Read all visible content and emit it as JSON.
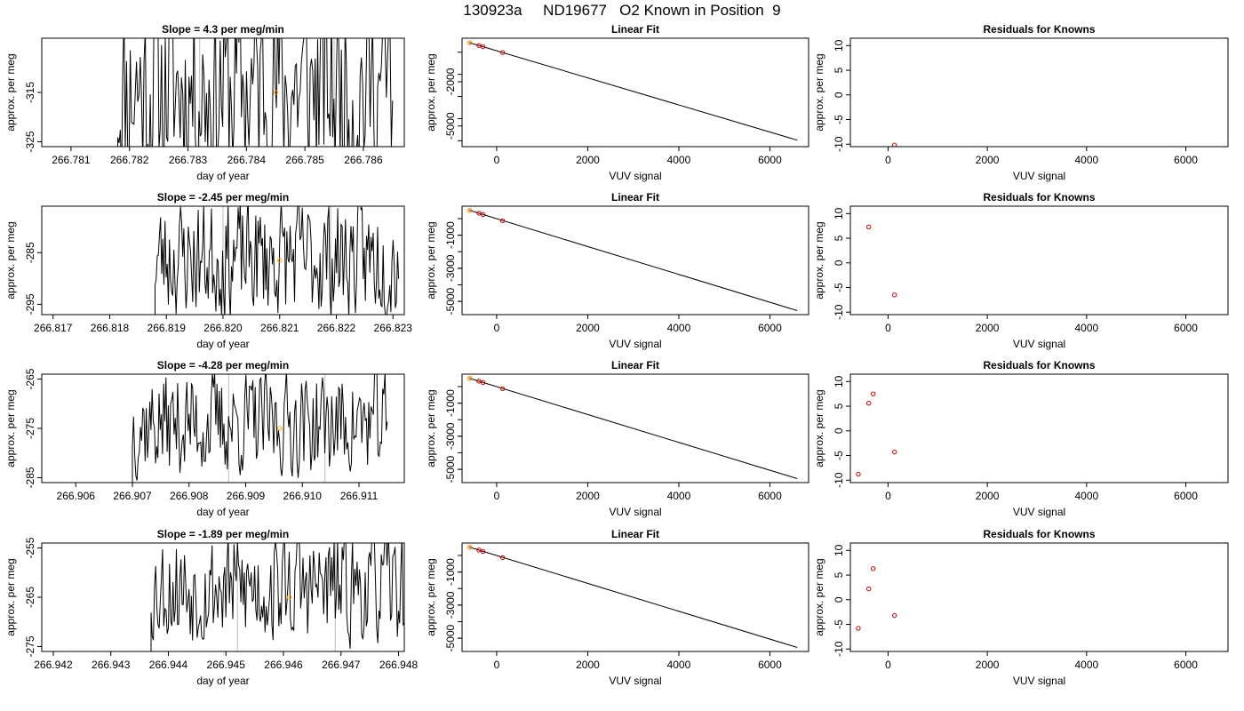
{
  "suptitle": "130923a     ND19677   O2 Known in Position  9",
  "colors": {
    "trace": "#000000",
    "marker": "#FFA500",
    "fit_point": "#CC0000",
    "vline": "#BEBEBE",
    "axis": "#000000"
  },
  "chart_data": [
    {
      "type": "line",
      "title": "Slope =  4.3  per meg/min",
      "xlabel": "day of year",
      "ylabel": "approx. per meg",
      "xlim": [
        266.7805,
        266.7867
      ],
      "ylim": [
        -326,
        -304
      ],
      "xticks": [
        "266.781",
        "266.782",
        "266.783",
        "266.784",
        "266.785",
        "266.786"
      ],
      "yticks": [
        "-315",
        "-325"
      ],
      "trace": {
        "x_start": 266.7818,
        "x_end": 266.7865,
        "y_mean": -314,
        "y_amp": 26,
        "seed": 11
      },
      "vlines": [
        266.7832,
        266.7855
      ],
      "marker": {
        "x": 266.7845,
        "y": -315
      }
    },
    {
      "type": "line",
      "title": "Linear Fit",
      "xlabel": "VUV signal",
      "ylabel": "approx. per meg",
      "xlim": [
        -760,
        6850
      ],
      "ylim": [
        -6400,
        950
      ],
      "xticks": [
        "0",
        "2000",
        "4000",
        "6000"
      ],
      "yticks": [
        "-2000",
        "-5000"
      ],
      "line": {
        "x": [
          -600,
          6600
        ],
        "y": [
          650,
          -5960
        ]
      },
      "points": [
        {
          "x": -590,
          "y": 640
        },
        {
          "x": -390,
          "y": 455
        },
        {
          "x": -300,
          "y": 372
        },
        {
          "x": 130,
          "y": -20
        }
      ],
      "highlight": {
        "x": -590,
        "y": 640
      }
    },
    {
      "type": "scatter",
      "title": "Residuals for Knowns",
      "xlabel": "VUV signal",
      "ylabel": "approx. per meg",
      "xlim": [
        -760,
        6850
      ],
      "ylim": [
        -10.5,
        11.5
      ],
      "xticks": [
        "0",
        "2000",
        "4000",
        "6000"
      ],
      "yticks": [
        "10",
        "5",
        "0",
        "-5",
        "-10"
      ],
      "points": [
        {
          "x": 130,
          "y": -10.2
        }
      ]
    },
    {
      "type": "line",
      "title": "Slope =  -2.45  per meg/min",
      "xlabel": "day of year",
      "ylabel": "approx. per meg",
      "xlim": [
        266.8168,
        266.8232
      ],
      "ylim": [
        -297,
        -276
      ],
      "xticks": [
        "266.817",
        "266.818",
        "266.819",
        "266.820",
        "266.821",
        "266.822",
        "266.823"
      ],
      "yticks": [
        "-285",
        "-295"
      ],
      "trace": {
        "x_start": 266.8188,
        "x_end": 266.8231,
        "y_mean": -286,
        "y_amp": 14,
        "seed": 23
      },
      "vlines": [
        266.82,
        266.8219
      ],
      "marker": {
        "x": 266.821,
        "y": -286.5
      }
    },
    {
      "type": "line",
      "title": "Linear Fit",
      "xlabel": "VUV signal",
      "ylabel": "approx. per meg",
      "xlim": [
        -760,
        6850
      ],
      "ylim": [
        -5800,
        750
      ],
      "xticks": [
        "0",
        "2000",
        "4000",
        "6000"
      ],
      "yticks": [
        "-1000",
        "-3000",
        "-5000"
      ],
      "line": {
        "x": [
          -600,
          6600
        ],
        "y": [
          500,
          -5560
        ]
      },
      "points": [
        {
          "x": -590,
          "y": 490
        },
        {
          "x": -390,
          "y": 330
        },
        {
          "x": -300,
          "y": 245
        },
        {
          "x": 130,
          "y": -130
        }
      ],
      "highlight": {
        "x": -590,
        "y": 490
      }
    },
    {
      "type": "scatter",
      "title": "Residuals for Knowns",
      "xlabel": "VUV signal",
      "ylabel": "approx. per meg",
      "xlim": [
        -760,
        6850
      ],
      "ylim": [
        -10.5,
        11.5
      ],
      "xticks": [
        "0",
        "2000",
        "4000",
        "6000"
      ],
      "yticks": [
        "10",
        "5",
        "0",
        "-5",
        "-10"
      ],
      "points": [
        {
          "x": -390,
          "y": 7.3
        },
        {
          "x": 130,
          "y": -6.5
        }
      ]
    },
    {
      "type": "line",
      "title": "Slope =  -4.28  per meg/min",
      "xlabel": "day of year",
      "ylabel": "approx. per meg",
      "xlim": [
        266.9054,
        266.9118
      ],
      "ylim": [
        -286,
        -264
      ],
      "xticks": [
        "266.906",
        "266.907",
        "266.908",
        "266.909",
        "266.910",
        "266.911"
      ],
      "yticks": [
        "-265",
        "-275",
        "-285"
      ],
      "trace": {
        "x_start": 266.907,
        "x_end": 266.9115,
        "y_mean": -274,
        "y_amp": 13,
        "seed": 37
      },
      "vlines": [
        266.9087,
        266.9104
      ],
      "marker": {
        "x": 266.9096,
        "y": -275
      }
    },
    {
      "type": "line",
      "title": "Linear Fit",
      "xlabel": "VUV signal",
      "ylabel": "approx. per meg",
      "xlim": [
        -760,
        6850
      ],
      "ylim": [
        -5800,
        750
      ],
      "xticks": [
        "0",
        "2000",
        "4000",
        "6000"
      ],
      "yticks": [
        "-1000",
        "-3000",
        "-5000"
      ],
      "line": {
        "x": [
          -600,
          6600
        ],
        "y": [
          500,
          -5560
        ]
      },
      "points": [
        {
          "x": -590,
          "y": 490
        },
        {
          "x": -390,
          "y": 330
        },
        {
          "x": -300,
          "y": 245
        },
        {
          "x": 130,
          "y": -130
        }
      ],
      "highlight": {
        "x": -590,
        "y": 490
      }
    },
    {
      "type": "scatter",
      "title": "Residuals for Knowns",
      "xlabel": "VUV signal",
      "ylabel": "approx. per meg",
      "xlim": [
        -760,
        6850
      ],
      "ylim": [
        -10.5,
        11.5
      ],
      "xticks": [
        "0",
        "2000",
        "4000",
        "6000"
      ],
      "yticks": [
        "10",
        "5",
        "0",
        "-5",
        "-10"
      ],
      "points": [
        {
          "x": -600,
          "y": -8.8
        },
        {
          "x": -390,
          "y": 5.6
        },
        {
          "x": -300,
          "y": 7.5
        },
        {
          "x": 130,
          "y": -4.3
        }
      ]
    },
    {
      "type": "line",
      "title": "Slope =  -1.89  per meg/min",
      "xlabel": "day of year",
      "ylabel": "approx. per meg",
      "xlim": [
        266.9418,
        266.9481
      ],
      "ylim": [
        -276,
        -254
      ],
      "xticks": [
        "266.942",
        "266.943",
        "266.944",
        "266.945",
        "266.946",
        "266.947",
        "266.948"
      ],
      "yticks": [
        "-255",
        "-265",
        "-275"
      ],
      "trace": {
        "x_start": 266.9437,
        "x_end": 266.9481,
        "y_mean": -263,
        "y_amp": 14,
        "seed": 53
      },
      "vlines": [
        266.9452,
        266.9469
      ],
      "marker": {
        "x": 266.9461,
        "y": -265
      }
    },
    {
      "type": "line",
      "title": "Linear Fit",
      "xlabel": "VUV signal",
      "ylabel": "approx. per meg",
      "xlim": [
        -760,
        6850
      ],
      "ylim": [
        -5800,
        750
      ],
      "xticks": [
        "0",
        "2000",
        "4000",
        "6000"
      ],
      "yticks": [
        "-1000",
        "-3000",
        "-5000"
      ],
      "line": {
        "x": [
          -600,
          6600
        ],
        "y": [
          500,
          -5560
        ]
      },
      "points": [
        {
          "x": -590,
          "y": 490
        },
        {
          "x": -390,
          "y": 330
        },
        {
          "x": -300,
          "y": 245
        },
        {
          "x": 130,
          "y": -130
        }
      ],
      "highlight": {
        "x": -590,
        "y": 490
      }
    },
    {
      "type": "scatter",
      "title": "Residuals for Knowns",
      "xlabel": "VUV signal",
      "ylabel": "approx. per meg",
      "xlim": [
        -760,
        6850
      ],
      "ylim": [
        -10.5,
        11.5
      ],
      "xticks": [
        "0",
        "2000",
        "4000",
        "6000"
      ],
      "yticks": [
        "10",
        "5",
        "0",
        "-5",
        "-10"
      ],
      "points": [
        {
          "x": -600,
          "y": -5.8
        },
        {
          "x": -390,
          "y": 2.2
        },
        {
          "x": -300,
          "y": 6.3
        },
        {
          "x": 130,
          "y": -3.2
        }
      ]
    }
  ]
}
